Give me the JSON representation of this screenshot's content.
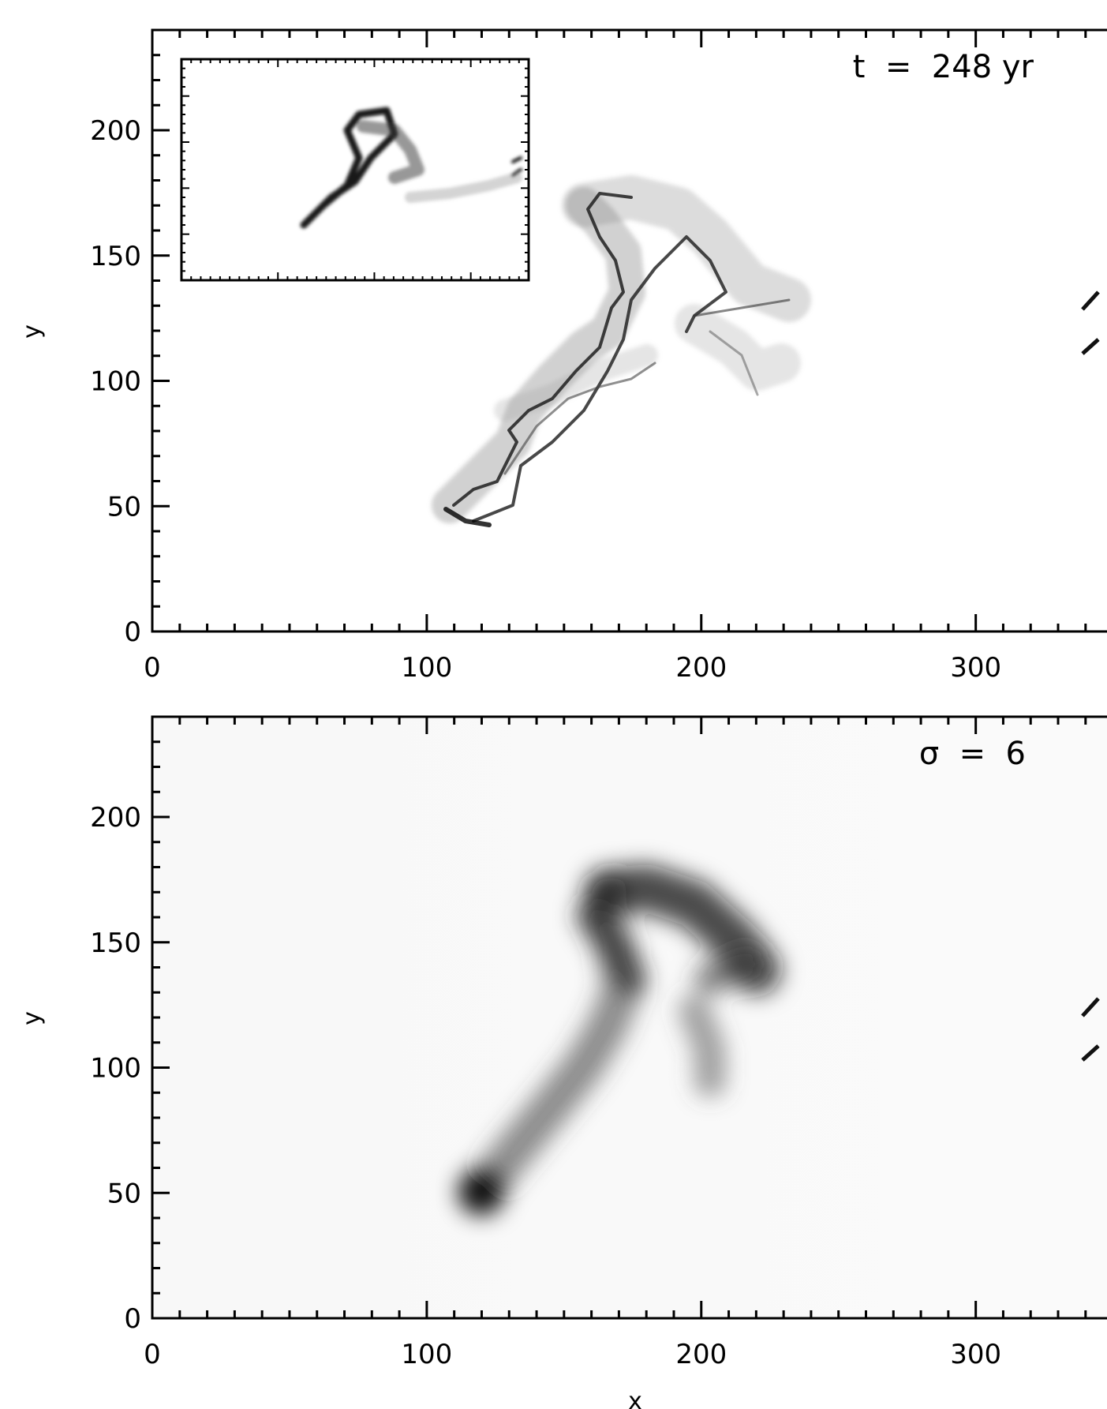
{
  "chart_data": [
    {
      "type": "heatmap",
      "panel": "top",
      "xlabel": "",
      "ylabel": "y",
      "xlim": [
        0,
        355
      ],
      "ylim": [
        0,
        240
      ],
      "xticks": [
        0,
        100,
        200,
        300
      ],
      "yticks": [
        0,
        50,
        100,
        150,
        200
      ],
      "annotation": "t  =  248 yr",
      "colormap": "inverted-greyscale",
      "grid": false,
      "inset": {
        "xlim": [
          0,
          355
        ],
        "ylim": [
          0,
          240
        ]
      }
    },
    {
      "type": "heatmap",
      "panel": "bottom",
      "xlabel": "x",
      "ylabel": "y",
      "xlim": [
        0,
        355
      ],
      "ylim": [
        0,
        240
      ],
      "xticks": [
        0,
        100,
        200,
        300
      ],
      "yticks": [
        0,
        50,
        100,
        150,
        200
      ],
      "annotation": "σ  =  6",
      "colormap": "inverted-greyscale",
      "grid": false
    }
  ]
}
